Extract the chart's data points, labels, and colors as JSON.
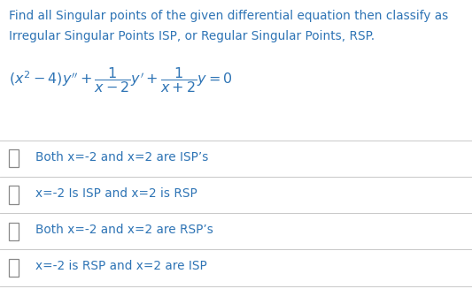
{
  "title_line1": "Find all Singular points of the given differential equation then classify as",
  "title_line2": "Irregular Singular Points ISP, or Regular Singular Points, RSP.",
  "options": [
    "Both x=-2 and x=2 are ISP’s",
    "x=-2 Is ISP and x=2 is RSP",
    "Both x=-2 and x=2 are RSP’s",
    "x=-2 is RSP and x=2 are ISP"
  ],
  "bg_color": "#ffffff",
  "text_color": "#2e74b5",
  "divider_color": "#c8c8c8",
  "title_fontsize": 9.8,
  "option_fontsize": 9.8,
  "eq_fontsize": 11.5,
  "fig_width": 5.33,
  "fig_height": 3.27,
  "dpi": 100
}
